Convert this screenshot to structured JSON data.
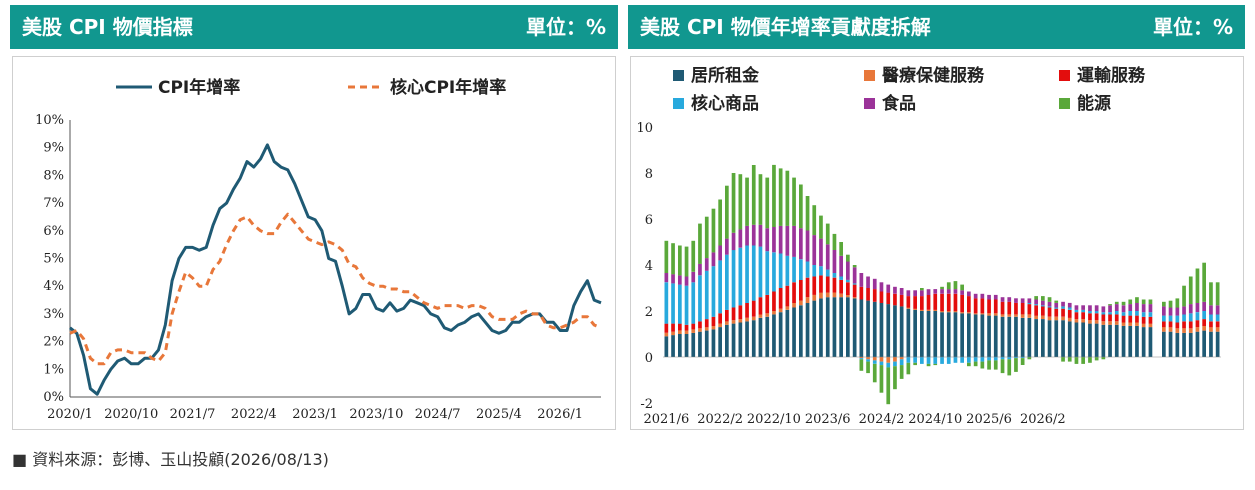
{
  "header_left": {
    "title": "美股 CPI 物價指標",
    "unit": "單位：%"
  },
  "header_right": {
    "title": "美股 CPI 物價年增率貢獻度拆解",
    "unit": "單位：%"
  },
  "source": "■ 資料來源：彭博、玉山投顧(2026/08/13)",
  "colors": {
    "header": "#11978f",
    "cpi": "#1f5a74",
    "core": "#e8773a",
    "rent": "#1f5a74",
    "medical": "#e8773a",
    "transport": "#e30d0d",
    "core_goods": "#28a9dd",
    "food": "#9b3399",
    "energy": "#5aa83a"
  },
  "chart_data": [
    {
      "type": "line",
      "legend_position": "top",
      "ylim": [
        0,
        10
      ],
      "y_ticks": [
        "0%",
        "1%",
        "2%",
        "3%",
        "4%",
        "5%",
        "6%",
        "7%",
        "8%",
        "9%",
        "10%"
      ],
      "x_ticks": [
        "2020/1",
        "2020/10",
        "2021/7",
        "2022/4",
        "2023/1",
        "2023/10",
        "2024/7",
        "2025/4",
        "2026/1"
      ],
      "x_start": "2020/1",
      "series": [
        {
          "name": "CPI年增率",
          "style": "solid",
          "values": [
            2.5,
            2.3,
            1.5,
            0.3,
            0.1,
            0.6,
            1.0,
            1.3,
            1.4,
            1.2,
            1.2,
            1.4,
            1.4,
            1.7,
            2.6,
            4.2,
            5.0,
            5.4,
            5.4,
            5.3,
            5.4,
            6.2,
            6.8,
            7.0,
            7.5,
            7.9,
            8.5,
            8.3,
            8.6,
            9.1,
            8.5,
            8.3,
            8.2,
            7.7,
            7.1,
            6.5,
            6.4,
            6.0,
            5.0,
            4.9,
            4.0,
            3.0,
            3.2,
            3.7,
            3.7,
            3.2,
            3.1,
            3.4,
            3.1,
            3.2,
            3.5,
            3.4,
            3.3,
            3.0,
            2.9,
            2.5,
            2.4,
            2.6,
            2.7,
            2.9,
            3.0,
            2.7,
            2.4,
            2.3,
            2.4,
            2.7,
            2.7,
            2.9,
            3.0,
            3.0,
            2.7,
            2.7,
            2.4,
            2.4,
            3.3,
            3.8,
            4.2,
            3.5,
            3.4
          ]
        },
        {
          "name": "核心CPI年增率",
          "style": "dashed",
          "values": [
            2.3,
            2.4,
            2.1,
            1.4,
            1.2,
            1.2,
            1.6,
            1.7,
            1.7,
            1.6,
            1.6,
            1.6,
            1.4,
            1.3,
            1.6,
            3.0,
            3.8,
            4.5,
            4.3,
            4.0,
            4.0,
            4.6,
            4.9,
            5.5,
            6.0,
            6.4,
            6.5,
            6.2,
            6.0,
            5.9,
            5.9,
            6.3,
            6.6,
            6.3,
            6.0,
            5.7,
            5.6,
            5.5,
            5.6,
            5.5,
            5.3,
            4.8,
            4.7,
            4.3,
            4.1,
            4.0,
            4.0,
            3.9,
            3.9,
            3.8,
            3.8,
            3.6,
            3.4,
            3.3,
            3.2,
            3.3,
            3.3,
            3.3,
            3.2,
            3.3,
            3.3,
            3.2,
            2.9,
            2.8,
            2.8,
            2.8,
            3.0,
            3.1,
            3.0,
            3.0,
            2.6,
            2.5,
            2.5,
            2.6,
            2.7,
            2.9,
            2.9,
            2.6,
            2.5
          ]
        }
      ]
    },
    {
      "type": "bar",
      "stacked": true,
      "legend_position": "top",
      "ylim": [
        -2,
        10
      ],
      "y_ticks": [
        "-2",
        "0",
        "2",
        "4",
        "6",
        "8",
        "10"
      ],
      "x_ticks": [
        "2021/6",
        "2022/2",
        "2022/10",
        "2023/6",
        "2024/2",
        "2024/10",
        "2025/6",
        "2026/2"
      ],
      "x_start": "2021/6",
      "series": [
        {
          "name": "居所租金",
          "values": [
            0.9,
            0.95,
            1.0,
            1.0,
            1.05,
            1.1,
            1.15,
            1.2,
            1.3,
            1.4,
            1.45,
            1.5,
            1.55,
            1.6,
            1.7,
            1.75,
            1.85,
            1.95,
            2.05,
            2.15,
            2.25,
            2.35,
            2.45,
            2.55,
            2.6,
            2.6,
            2.6,
            2.6,
            2.55,
            2.5,
            2.45,
            2.4,
            2.35,
            2.3,
            2.25,
            2.2,
            2.1,
            2.05,
            2.0,
            2.0,
            2.0,
            1.95,
            1.95,
            1.95,
            1.9,
            1.9,
            1.85,
            1.85,
            1.8,
            1.8,
            1.75,
            1.75,
            1.75,
            1.7,
            1.7,
            1.65,
            1.65,
            1.6,
            1.6,
            1.6,
            1.55,
            1.5,
            1.5,
            1.45,
            1.45,
            1.4,
            1.4,
            1.4,
            1.35,
            1.35,
            1.35,
            1.3,
            1.3,
            null,
            1.1,
            1.1,
            1.05,
            1.05,
            1.05,
            1.1,
            1.15,
            1.1,
            1.1
          ]
        },
        {
          "name": "醫療保健服務",
          "values": [
            0.15,
            0.15,
            0.15,
            0.15,
            0.15,
            0.15,
            0.15,
            0.15,
            0.15,
            0.15,
            0.15,
            0.15,
            0.15,
            0.15,
            0.15,
            0.15,
            0.15,
            0.15,
            0.15,
            0.2,
            0.2,
            0.25,
            0.25,
            0.25,
            0.2,
            0.2,
            0.15,
            0.1,
            0.05,
            -0.05,
            -0.1,
            -0.15,
            -0.2,
            -0.25,
            -0.2,
            -0.1,
            0.05,
            0.05,
            0.05,
            0.05,
            0.05,
            0.05,
            0.05,
            0.05,
            0.05,
            0.05,
            0.05,
            0.05,
            0.1,
            0.1,
            0.1,
            0.1,
            0.1,
            0.15,
            0.15,
            0.15,
            0.15,
            0.15,
            0.15,
            0.15,
            0.15,
            0.15,
            0.15,
            0.15,
            0.15,
            0.15,
            0.15,
            0.15,
            0.15,
            0.15,
            0.15,
            0.15,
            0.15,
            null,
            0.2,
            0.2,
            0.2,
            0.2,
            0.2,
            0.2,
            0.2,
            0.2,
            0.2
          ]
        },
        {
          "name": "運輸服務",
          "values": [
            0.4,
            0.35,
            0.3,
            0.25,
            0.25,
            0.3,
            0.35,
            0.4,
            0.45,
            0.5,
            0.55,
            0.6,
            0.65,
            0.7,
            0.75,
            0.8,
            0.85,
            0.9,
            0.9,
            0.9,
            0.9,
            0.85,
            0.8,
            0.75,
            0.7,
            0.65,
            0.6,
            0.55,
            0.55,
            0.55,
            0.55,
            0.55,
            0.5,
            0.5,
            0.5,
            0.5,
            0.5,
            0.55,
            0.6,
            0.65,
            0.7,
            0.75,
            0.75,
            0.75,
            0.75,
            0.7,
            0.65,
            0.65,
            0.6,
            0.6,
            0.55,
            0.55,
            0.5,
            0.5,
            0.45,
            0.45,
            0.4,
            0.4,
            0.35,
            0.35,
            0.35,
            0.3,
            0.3,
            0.3,
            0.3,
            0.3,
            0.3,
            0.3,
            0.3,
            0.3,
            0.3,
            0.3,
            0.3,
            null,
            0.25,
            0.25,
            0.25,
            0.3,
            0.3,
            0.3,
            0.3,
            0.25,
            0.25
          ]
        },
        {
          "name": "核心商品",
          "values": [
            1.8,
            1.75,
            1.7,
            1.7,
            1.8,
            2.0,
            2.1,
            2.2,
            2.3,
            2.4,
            2.5,
            2.5,
            2.5,
            2.4,
            2.2,
            1.9,
            1.7,
            1.5,
            1.3,
            1.1,
            0.9,
            0.7,
            0.5,
            0.4,
            0.3,
            0.2,
            0.15,
            0.1,
            0.05,
            -0.05,
            -0.1,
            -0.15,
            -0.15,
            -0.2,
            -0.2,
            -0.25,
            -0.25,
            -0.25,
            -0.3,
            -0.3,
            -0.3,
            -0.3,
            -0.3,
            -0.25,
            -0.25,
            -0.25,
            -0.2,
            -0.2,
            -0.15,
            -0.15,
            -0.1,
            -0.1,
            -0.05,
            -0.05,
            0.05,
            0.05,
            0.05,
            0.05,
            0.05,
            0.1,
            0.1,
            0.1,
            0.1,
            0.1,
            0.1,
            0.1,
            0.1,
            0.15,
            0.15,
            0.2,
            0.2,
            0.2,
            0.2,
            null,
            0.25,
            0.25,
            0.3,
            0.3,
            0.35,
            0.35,
            0.35,
            0.3,
            0.3
          ]
        },
        {
          "name": "食品",
          "values": [
            0.4,
            0.4,
            0.4,
            0.4,
            0.45,
            0.5,
            0.55,
            0.6,
            0.65,
            0.7,
            0.75,
            0.8,
            0.85,
            0.9,
            0.95,
            1.0,
            1.1,
            1.2,
            1.3,
            1.35,
            1.35,
            1.35,
            1.3,
            1.2,
            1.1,
            1.0,
            0.9,
            0.8,
            0.7,
            0.6,
            0.5,
            0.45,
            0.4,
            0.35,
            0.3,
            0.3,
            0.25,
            0.25,
            0.25,
            0.25,
            0.2,
            0.2,
            0.2,
            0.2,
            0.2,
            0.2,
            0.2,
            0.2,
            0.2,
            0.2,
            0.2,
            0.2,
            0.2,
            0.2,
            0.2,
            0.2,
            0.2,
            0.2,
            0.2,
            0.2,
            0.2,
            0.2,
            0.2,
            0.25,
            0.25,
            0.25,
            0.3,
            0.3,
            0.3,
            0.3,
            0.35,
            0.35,
            0.35,
            null,
            0.4,
            0.35,
            0.35,
            0.35,
            0.4,
            0.4,
            0.4,
            0.4,
            0.4
          ]
        },
        {
          "name": "能源",
          "values": [
            1.4,
            1.35,
            1.3,
            1.3,
            1.35,
            1.75,
            1.8,
            1.9,
            2.0,
            2.3,
            2.6,
            2.4,
            2.1,
            2.6,
            2.2,
            2.2,
            2.7,
            2.5,
            2.4,
            2.1,
            1.9,
            1.5,
            1.3,
            1.0,
            0.9,
            0.7,
            0.6,
            0.3,
            0.1,
            -0.5,
            -0.5,
            -0.8,
            -1.2,
            -1.6,
            -1.0,
            -0.6,
            -0.5,
            -0.1,
            0.1,
            -0.1,
            -0.05,
            0.1,
            0.3,
            0.35,
            0.25,
            -0.15,
            -0.2,
            -0.3,
            -0.4,
            -0.4,
            -0.6,
            -0.7,
            -0.6,
            -0.3,
            -0.1,
            0.15,
            0.2,
            0.2,
            0.1,
            -0.2,
            -0.2,
            -0.3,
            -0.3,
            -0.25,
            -0.15,
            -0.1,
            0.05,
            0.1,
            0.15,
            0.2,
            0.25,
            0.2,
            0.2,
            null,
            0.2,
            0.3,
            0.4,
            0.9,
            1.2,
            1.5,
            1.7,
            1.0,
            1.0
          ]
        }
      ]
    }
  ]
}
